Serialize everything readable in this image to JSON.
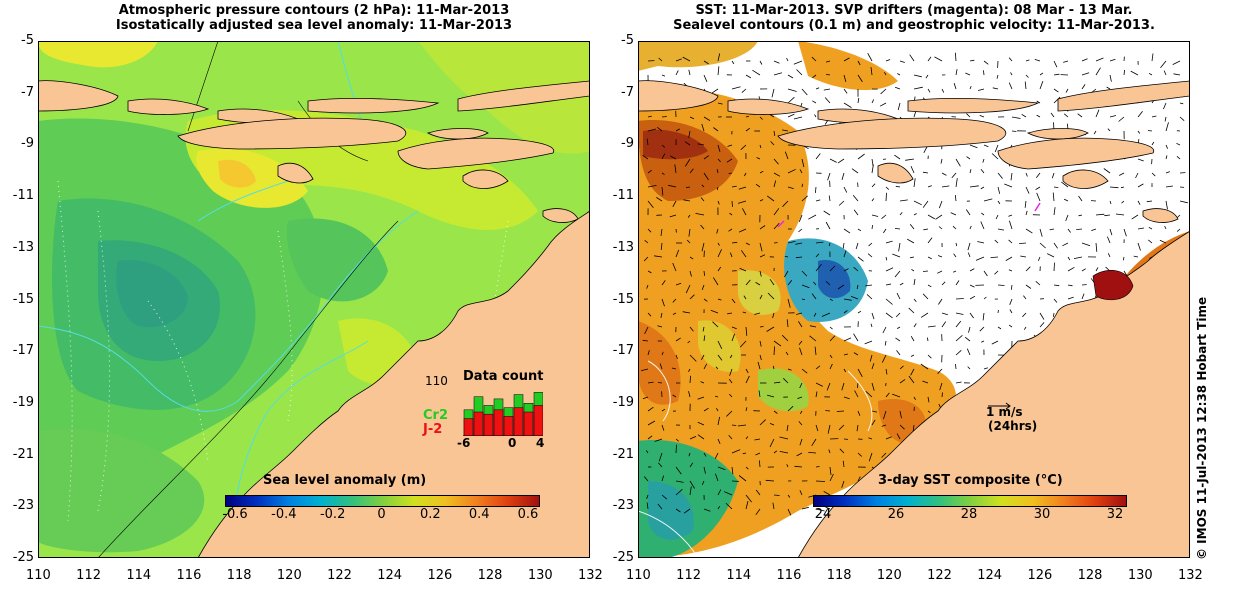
{
  "left": {
    "title_line1": "Atmospheric pressure contours (2 hPa): 11-Mar-2013",
    "title_line2": "Isostatically adjusted sea level anomaly: 11-Mar-2013",
    "y_ticks": [
      "-5",
      "-7",
      "-9",
      "-11",
      "-13",
      "-15",
      "-17",
      "-19",
      "-21",
      "-23",
      "-25"
    ],
    "x_ticks": [
      "110",
      "112",
      "114",
      "116",
      "118",
      "120",
      "122",
      "124",
      "126",
      "128",
      "130",
      "132"
    ],
    "colorbar_label": "Sea level anomaly (m)",
    "colorbar_ticks": [
      "-0.6",
      "-0.4",
      "-0.2",
      "0",
      "0.2",
      "0.4",
      "0.6"
    ],
    "inset": {
      "title": "Data count",
      "y_label": "110",
      "series": [
        {
          "name": "Cr2",
          "color": "#22cc22",
          "values": [
            60,
            90,
            70,
            85,
            65,
            95,
            75,
            100
          ]
        },
        {
          "name": "J-2",
          "color": "#ee1111",
          "values": [
            40,
            55,
            50,
            60,
            45,
            65,
            55,
            70
          ]
        }
      ],
      "x_ticks": [
        "-6",
        "0",
        "4"
      ]
    }
  },
  "right": {
    "title_line1": "SST: 11-Mar-2013. SVP drifters (magenta): 08 Mar - 13 Mar.",
    "title_line2": "Sealevel contours (0.1 m) and geostrophic velocity: 11-Mar-2013.",
    "y_ticks": [
      "-5",
      "-7",
      "-9",
      "-11",
      "-13",
      "-15",
      "-17",
      "-19",
      "-21",
      "-23",
      "-25"
    ],
    "x_ticks": [
      "110",
      "112",
      "114",
      "116",
      "118",
      "120",
      "122",
      "124",
      "126",
      "128",
      "130",
      "132"
    ],
    "colorbar_label": "3-day SST composite (°C)",
    "colorbar_ticks": [
      "24",
      "26",
      "28",
      "30",
      "32"
    ],
    "velocity_scale_line1": "1 m/s",
    "velocity_scale_line2": "(24hrs)"
  },
  "credit": "© IMOS 11-Jul-2013 12:38 Hobart Time",
  "colors": {
    "land": "#f9c595",
    "slaMid": "#7ed94e",
    "sstWarm": "#f0a020",
    "contour": "#55dddd"
  }
}
